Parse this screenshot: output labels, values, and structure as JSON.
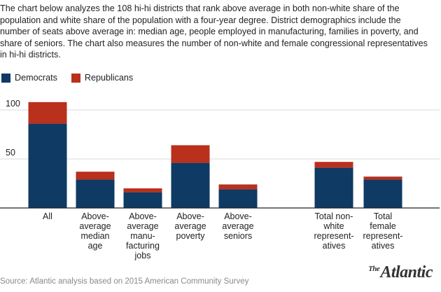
{
  "intro": "The chart below analyzes the 108 hi-hi districts that rank above average in both non-white share of the population and white share of the population with a four-year degree. District demographics include the number of seats above average in: median age, people employed in manufacturing, families in poverty, and share of seniors. The chart also measures the number of non-white and female congressional representatives in hi-hi districts.",
  "source": "Source: Atlantic analysis based on 2015 American Community Survey",
  "logo": {
    "the": "The",
    "name": "Atlantic"
  },
  "colors": {
    "democrats": "#0e3a64",
    "republicans": "#b9301d",
    "grid": "#d9d9d9",
    "axis": "#222222"
  },
  "chart_data": {
    "type": "bar",
    "stacked": true,
    "legend_position": "top-left",
    "grid": true,
    "ylim": [
      0,
      120
    ],
    "yticks": [
      50,
      100
    ],
    "categories": [
      [
        "All"
      ],
      [
        "Above-",
        "average",
        "median",
        "age"
      ],
      [
        "Above-",
        "average",
        "manu-",
        "facturing",
        "jobs"
      ],
      [
        "Above-",
        "average",
        "poverty"
      ],
      [
        "Above-",
        "average",
        "seniors"
      ],
      [
        "Total non-",
        "white",
        "represent-",
        "atives"
      ],
      [
        "Total",
        "female",
        "represent-",
        "atives"
      ]
    ],
    "series": [
      {
        "name": "Democrats",
        "values": [
          86,
          29,
          16,
          46,
          19,
          41,
          29
        ]
      },
      {
        "name": "Republicans",
        "values": [
          22,
          8,
          4,
          18,
          5,
          6,
          3
        ]
      }
    ]
  }
}
